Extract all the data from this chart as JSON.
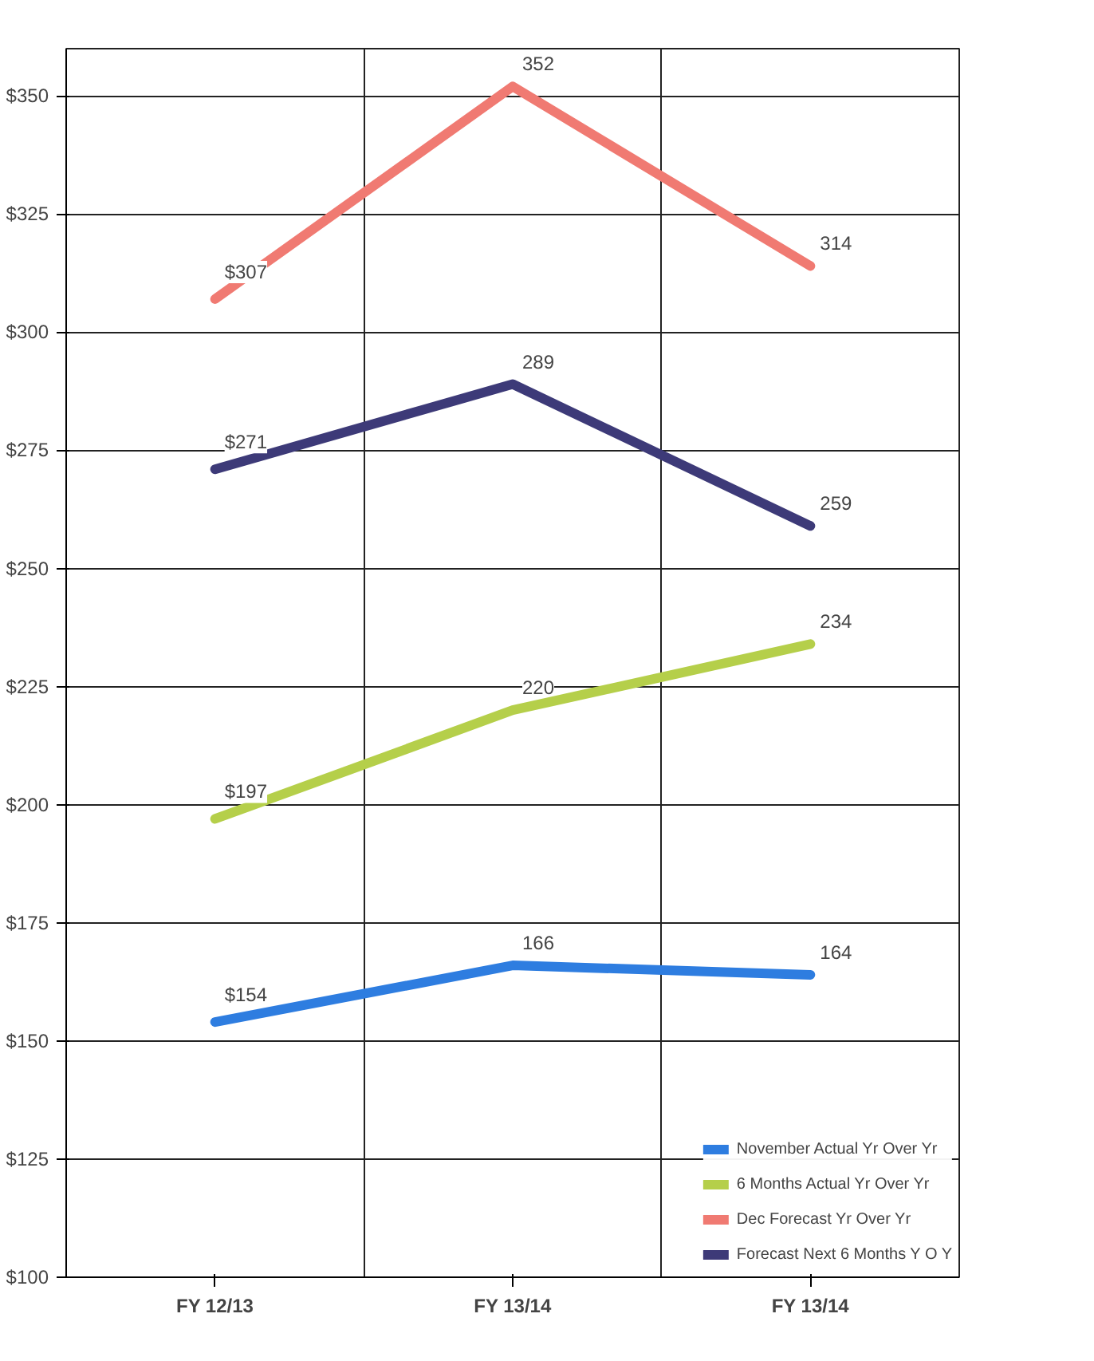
{
  "chart_data": {
    "type": "line",
    "categories": [
      "FY 12/13",
      "FY 13/14",
      "FY 13/14"
    ],
    "ylim": [
      100,
      360
    ],
    "yticks": [
      {
        "value": 100,
        "label": "$100"
      },
      {
        "value": 125,
        "label": "$125"
      },
      {
        "value": 150,
        "label": "$150"
      },
      {
        "value": 175,
        "label": "$175"
      },
      {
        "value": 200,
        "label": "$200"
      },
      {
        "value": 225,
        "label": "$225"
      },
      {
        "value": 250,
        "label": "$250"
      },
      {
        "value": 275,
        "label": "$275"
      },
      {
        "value": 300,
        "label": "$300"
      },
      {
        "value": 325,
        "label": "$325"
      },
      {
        "value": 350,
        "label": "$350"
      }
    ],
    "grid": true,
    "legend": "bottom right",
    "line_style": "solid",
    "series": [
      {
        "name": "November Actual Yr Over Yr",
        "color": "#2e7de0",
        "values": [
          154,
          166,
          164
        ],
        "value_labels": [
          "$154",
          "166",
          "164"
        ]
      },
      {
        "name": "6 Months Actual Yr Over Yr",
        "color": "#b5cf4a",
        "values": [
          197,
          220,
          234
        ],
        "value_labels": [
          "$197",
          "220",
          "234"
        ]
      },
      {
        "name": "Dec Forecast Yr Over Yr",
        "color": "#f07a72",
        "values": [
          307,
          352,
          314
        ],
        "value_labels": [
          "$307",
          "352",
          "314"
        ]
      },
      {
        "name": "Forecast Next 6 Months Y O Y",
        "color": "#3d3a78",
        "values": [
          271,
          289,
          259
        ],
        "value_labels": [
          "$271",
          "289",
          "259"
        ]
      }
    ]
  }
}
